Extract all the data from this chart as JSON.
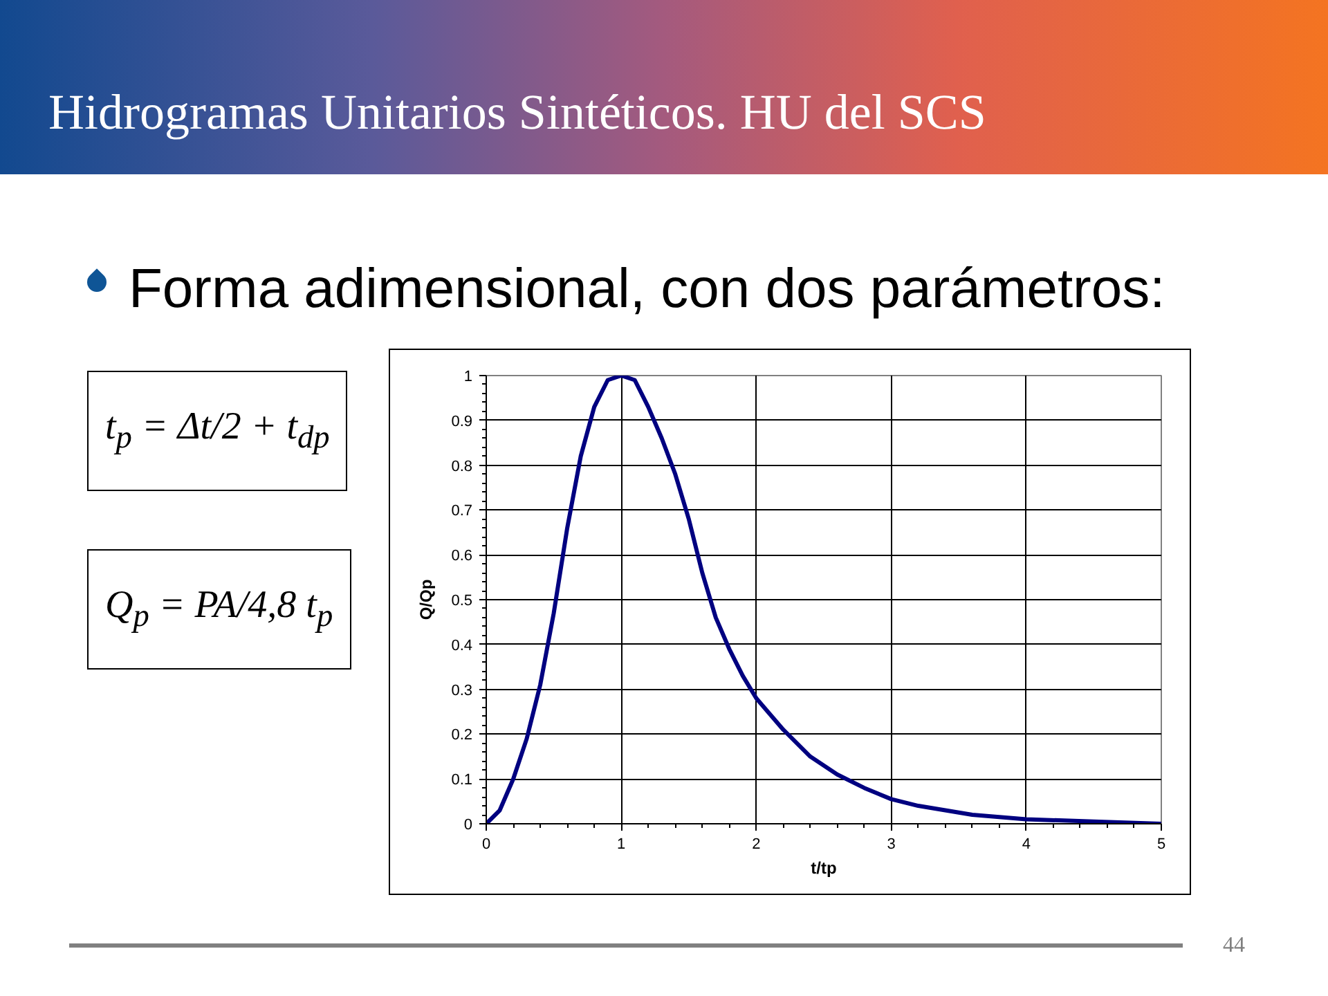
{
  "chart_data": {
    "type": "line",
    "title": "Hidrogramas Unitarios Sintéticos. HU del SCS",
    "subtitle": "Forma adimensional, con dos parámetros:",
    "xlabel": "t/tp",
    "ylabel": "Q/Qp",
    "x": [
      0,
      0.1,
      0.2,
      0.3,
      0.4,
      0.5,
      0.6,
      0.7,
      0.8,
      0.9,
      1.0,
      1.1,
      1.2,
      1.3,
      1.4,
      1.5,
      1.6,
      1.7,
      1.8,
      1.9,
      2.0,
      2.2,
      2.4,
      2.6,
      2.8,
      3.0,
      3.2,
      3.4,
      3.6,
      3.8,
      4.0,
      4.5,
      5.0
    ],
    "series": [
      {
        "color": "#000080",
        "values": [
          0,
          0.03,
          0.1,
          0.19,
          0.31,
          0.47,
          0.66,
          0.82,
          0.93,
          0.99,
          1.0,
          0.99,
          0.93,
          0.86,
          0.78,
          0.68,
          0.56,
          0.46,
          0.39,
          0.33,
          0.28,
          0.21,
          0.15,
          0.11,
          0.08,
          0.055,
          0.04,
          0.03,
          0.02,
          0.015,
          0.01,
          0.005,
          0
        ]
      }
    ],
    "xlim": [
      0,
      5
    ],
    "ylim": [
      0,
      1
    ],
    "xticks": [
      0,
      1,
      2,
      3,
      4,
      5
    ],
    "yticks": [
      0,
      0.1,
      0.2,
      0.3,
      0.4,
      0.5,
      0.6,
      0.7,
      0.8,
      0.9,
      1
    ],
    "grid": true,
    "line_style": "solid",
    "annotations": [
      "t$_{p}$ = Δt/2 + t$_{dp}$",
      "Q$_{p}$ = PA/4,8 t$_{p}$",
      "44"
    ]
  }
}
